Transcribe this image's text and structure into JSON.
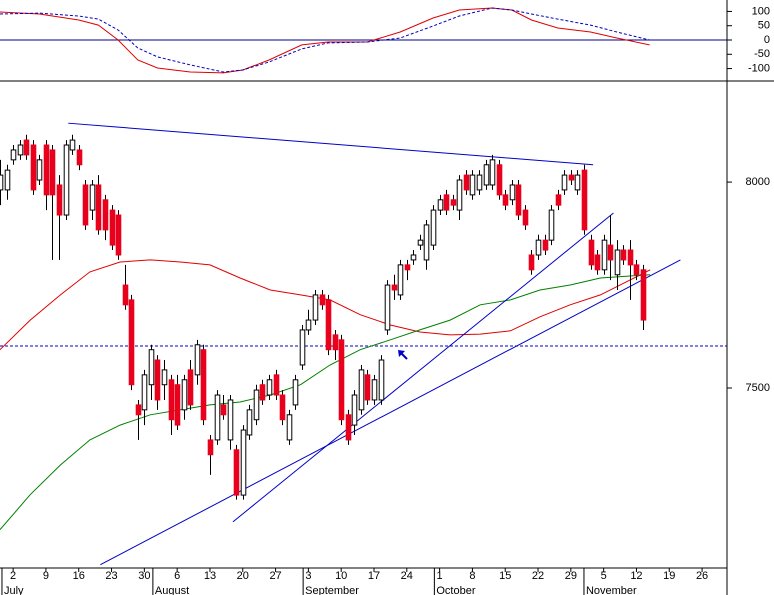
{
  "chart_data": [
    {
      "type": "line",
      "ylim": [
        -140,
        140
      ],
      "yticks": [
        100,
        50,
        0,
        -50,
        -100
      ],
      "xlim": [
        -2,
        108.8
      ],
      "zero_line_color": "#00008b",
      "x": [
        -2,
        4,
        10,
        13,
        16,
        19,
        22,
        27,
        32,
        35,
        39,
        44,
        48,
        54,
        59,
        64,
        68,
        73,
        76,
        79,
        83,
        88,
        92,
        97
      ],
      "series": [
        {
          "color": "#e00000",
          "line_style": "solid",
          "values": [
            98,
            91,
            70,
            52,
            0,
            -70,
            -98,
            -112,
            -115,
            -105,
            -70,
            -17,
            -7,
            -7,
            28,
            77,
            105,
            112,
            105,
            70,
            42,
            28,
            7,
            -17
          ]
        },
        {
          "color": "#0000c0",
          "line_style": "dashed",
          "values": [
            91,
            94,
            84,
            73,
            35,
            -28,
            -59,
            -87,
            -112,
            -105,
            -77,
            -31,
            -10,
            -7,
            7,
            49,
            84,
            112,
            105,
            91,
            73,
            52,
            28,
            0
          ]
        }
      ]
    },
    {
      "type": "candlestick",
      "ylim": [
        7063,
        8243
      ],
      "yticks": [
        7500,
        8000
      ],
      "xlim": [
        -2,
        108.8
      ],
      "up_color": "#ffffff",
      "down_color": "#e8001c",
      "xticks": [
        {
          "value": 0,
          "label": "2"
        },
        {
          "value": 5,
          "label": "9"
        },
        {
          "value": 10,
          "label": "16"
        },
        {
          "value": 15,
          "label": "23"
        },
        {
          "value": 20,
          "label": "30"
        },
        {
          "value": 25,
          "label": "6"
        },
        {
          "value": 30,
          "label": "13"
        },
        {
          "value": 35,
          "label": "20"
        },
        {
          "value": 40,
          "label": "27"
        },
        {
          "value": 45,
          "label": "3"
        },
        {
          "value": 50,
          "label": "10"
        },
        {
          "value": 55,
          "label": "17"
        },
        {
          "value": 60,
          "label": "24"
        },
        {
          "value": 65,
          "label": "1"
        },
        {
          "value": 70,
          "label": "8"
        },
        {
          "value": 75,
          "label": "15"
        },
        {
          "value": 80,
          "label": "22"
        },
        {
          "value": 85,
          "label": "29"
        },
        {
          "value": 90,
          "label": "5"
        },
        {
          "value": 95,
          "label": "12"
        },
        {
          "value": 100,
          "label": "19"
        },
        {
          "value": 105,
          "label": "26"
        }
      ],
      "month_ticks": [
        {
          "value": -1.7,
          "label": "July"
        },
        {
          "value": 21.3,
          "label": "August"
        },
        {
          "value": 44.2,
          "label": "September"
        },
        {
          "value": 64.2,
          "label": "October"
        },
        {
          "value": 87,
          "label": "November"
        }
      ],
      "x": [
        -2,
        -1,
        0,
        1,
        2,
        3,
        4,
        5,
        6,
        7,
        8,
        9,
        10,
        11,
        12,
        13,
        14,
        15,
        16,
        17,
        18,
        19,
        20,
        21,
        22,
        23,
        24,
        25,
        26,
        27,
        28,
        29,
        30,
        31,
        32,
        33,
        34,
        35,
        36,
        37,
        38,
        39,
        40,
        41,
        42,
        43,
        44,
        45,
        46,
        47,
        48,
        49,
        50,
        51,
        52,
        53,
        54,
        55,
        56,
        57,
        58,
        59,
        60,
        61,
        62,
        63,
        64,
        65,
        66,
        67,
        68,
        69,
        70,
        71,
        72,
        73,
        74,
        75,
        76,
        77,
        78,
        79,
        80,
        81,
        82,
        83,
        84,
        85,
        86,
        87,
        88,
        89,
        90,
        91,
        92,
        93,
        94,
        95,
        96,
        97
      ],
      "ohlc": [
        [
          7981,
          8054,
          7944,
          8017
        ],
        [
          7981,
          8042,
          7957,
          8029
        ],
        [
          8054,
          8090,
          8042,
          8078
        ],
        [
          8066,
          8102,
          8054,
          8090
        ],
        [
          8102,
          8115,
          8054,
          8066
        ],
        [
          8090,
          8102,
          7969,
          7981
        ],
        [
          8005,
          8066,
          7993,
          8054
        ],
        [
          8090,
          8102,
          7932,
          7969
        ],
        [
          8078,
          8090,
          7811,
          7969
        ],
        [
          7993,
          8017,
          7811,
          7920
        ],
        [
          7920,
          8102,
          7908,
          8090
        ],
        [
          8078,
          8115,
          8066,
          8102
        ],
        [
          8078,
          8090,
          8029,
          8042
        ],
        [
          7993,
          8005,
          7884,
          7896
        ],
        [
          7932,
          8005,
          7908,
          7993
        ],
        [
          7993,
          8017,
          7872,
          7884
        ],
        [
          7957,
          7969,
          7859,
          7884
        ],
        [
          7932,
          7944,
          7835,
          7847
        ],
        [
          7920,
          7932,
          7811,
          7823
        ],
        [
          7750,
          7799,
          7690,
          7702
        ],
        [
          7714,
          7726,
          7495,
          7508
        ],
        [
          7459,
          7471,
          7374,
          7435
        ],
        [
          7447,
          7544,
          7410,
          7532
        ],
        [
          7508,
          7605,
          7471,
          7593
        ],
        [
          7568,
          7580,
          7447,
          7471
        ],
        [
          7508,
          7568,
          7471,
          7544
        ],
        [
          7520,
          7532,
          7386,
          7423
        ],
        [
          7508,
          7532,
          7398,
          7410
        ],
        [
          7447,
          7532,
          7423,
          7520
        ],
        [
          7544,
          7568,
          7447,
          7459
        ],
        [
          7532,
          7617,
          7508,
          7605
        ],
        [
          7593,
          7605,
          7410,
          7423
        ],
        [
          7374,
          7386,
          7289,
          7338
        ],
        [
          7374,
          7495,
          7362,
          7483
        ],
        [
          7459,
          7483,
          7423,
          7435
        ],
        [
          7374,
          7483,
          7350,
          7471
        ],
        [
          7350,
          7362,
          7229,
          7240
        ],
        [
          7240,
          7410,
          7229,
          7398
        ],
        [
          7386,
          7459,
          7374,
          7447
        ],
        [
          7423,
          7508,
          7410,
          7495
        ],
        [
          7508,
          7520,
          7459,
          7471
        ],
        [
          7483,
          7532,
          7471,
          7520
        ],
        [
          7532,
          7544,
          7471,
          7483
        ],
        [
          7483,
          7495,
          7410,
          7423
        ],
        [
          7374,
          7447,
          7362,
          7435
        ],
        [
          7459,
          7532,
          7447,
          7520
        ],
        [
          7556,
          7653,
          7544,
          7641
        ],
        [
          7641,
          7690,
          7629,
          7665
        ],
        [
          7665,
          7738,
          7653,
          7726
        ],
        [
          7726,
          7738,
          7690,
          7702
        ],
        [
          7714,
          7726,
          7580,
          7593
        ],
        [
          7629,
          7641,
          7568,
          7593
        ],
        [
          7617,
          7629,
          7410,
          7423
        ],
        [
          7435,
          7447,
          7362,
          7374
        ],
        [
          7410,
          7495,
          7386,
          7483
        ],
        [
          7447,
          7556,
          7435,
          7544
        ],
        [
          7532,
          7544,
          7459,
          7471
        ],
        [
          7471,
          7532,
          7459,
          7520
        ],
        [
          7471,
          7580,
          7459,
          7568
        ],
        [
          7641,
          7762,
          7629,
          7750
        ],
        [
          7750,
          7775,
          7714,
          7738
        ],
        [
          7726,
          7811,
          7714,
          7799
        ],
        [
          7799,
          7811,
          7762,
          7787
        ],
        [
          7811,
          7835,
          7799,
          7823
        ],
        [
          7847,
          7872,
          7835,
          7859
        ],
        [
          7811,
          7908,
          7787,
          7896
        ],
        [
          7847,
          7944,
          7835,
          7932
        ],
        [
          7932,
          7969,
          7920,
          7957
        ],
        [
          7969,
          7981,
          7920,
          7932
        ],
        [
          7957,
          7969,
          7932,
          7944
        ],
        [
          7932,
          8017,
          7908,
          8005
        ],
        [
          8017,
          8029,
          7969,
          7981
        ],
        [
          7969,
          8029,
          7957,
          8017
        ],
        [
          7981,
          8029,
          7969,
          8017
        ],
        [
          7993,
          8054,
          7981,
          8042
        ],
        [
          7993,
          8066,
          7981,
          8054
        ],
        [
          8042,
          8054,
          7957,
          7969
        ],
        [
          7969,
          7981,
          7932,
          7944
        ],
        [
          7957,
          8005,
          7944,
          7993
        ],
        [
          7993,
          8005,
          7908,
          7920
        ],
        [
          7932,
          7944,
          7884,
          7896
        ],
        [
          7823,
          7835,
          7775,
          7787
        ],
        [
          7823,
          7872,
          7811,
          7859
        ],
        [
          7859,
          7872,
          7823,
          7835
        ],
        [
          7859,
          7944,
          7847,
          7932
        ],
        [
          7969,
          7981,
          7932,
          7944
        ],
        [
          7981,
          8029,
          7969,
          8017
        ],
        [
          8017,
          8029,
          7993,
          8005
        ],
        [
          7981,
          8029,
          7969,
          8017
        ],
        [
          8029,
          8042,
          7872,
          7884
        ],
        [
          7859,
          7872,
          7787,
          7799
        ],
        [
          7823,
          7835,
          7775,
          7787
        ],
        [
          7787,
          7872,
          7775,
          7859
        ],
        [
          7847,
          7920,
          7762,
          7811
        ],
        [
          7775,
          7859,
          7738,
          7835
        ],
        [
          7835,
          7847,
          7799,
          7811
        ],
        [
          7835,
          7859,
          7714,
          7799
        ],
        [
          7799,
          7811,
          7762,
          7775
        ],
        [
          7787,
          7799,
          7641,
          7665
        ]
      ],
      "overlays": [
        {
          "color": "#e00000",
          "x": [
            -2,
            2.6,
            7.2,
            11.7,
            16.3,
            20.9,
            25.5,
            30,
            34.6,
            39.2,
            43.8,
            48.3,
            52.9,
            57.5,
            62,
            66.6,
            71.2,
            75.8,
            80.3,
            84.9,
            89.5,
            94,
            97.1
          ],
          "values": [
            7593,
            7665,
            7726,
            7782,
            7806,
            7811,
            7806,
            7799,
            7767,
            7738,
            7726,
            7714,
            7678,
            7653,
            7636,
            7629,
            7631,
            7639,
            7673,
            7702,
            7726,
            7762,
            7787
          ]
        },
        {
          "color": "#008000",
          "x": [
            -2,
            2.6,
            7.2,
            11.7,
            16.3,
            20.9,
            25.5,
            30,
            34.6,
            39.2,
            43.8,
            48.3,
            52.9,
            57.5,
            62,
            66.6,
            71.2,
            75.8,
            80.3,
            84.9,
            89.5,
            94,
            97.1
          ],
          "values": [
            7156,
            7241,
            7313,
            7374,
            7410,
            7435,
            7447,
            7459,
            7466,
            7483,
            7508,
            7556,
            7593,
            7617,
            7641,
            7665,
            7702,
            7714,
            7738,
            7750,
            7767,
            7772,
            7775
          ]
        }
      ],
      "trendlines": [
        {
          "color": "#0000c8",
          "x": [
            8.4,
            88.4
          ],
          "values": [
            8143,
            8042
          ]
        },
        {
          "color": "#0000c8",
          "x": [
            33.5,
            91.5
          ],
          "values": [
            7175,
            7925
          ]
        },
        {
          "color": "#0000c8",
          "x": [
            13.3,
            101.7
          ],
          "values": [
            7071,
            7811
          ]
        }
      ],
      "hlines": [
        {
          "color": "#0000c8",
          "line_style": "dashed",
          "value": 7602
        }
      ]
    }
  ]
}
